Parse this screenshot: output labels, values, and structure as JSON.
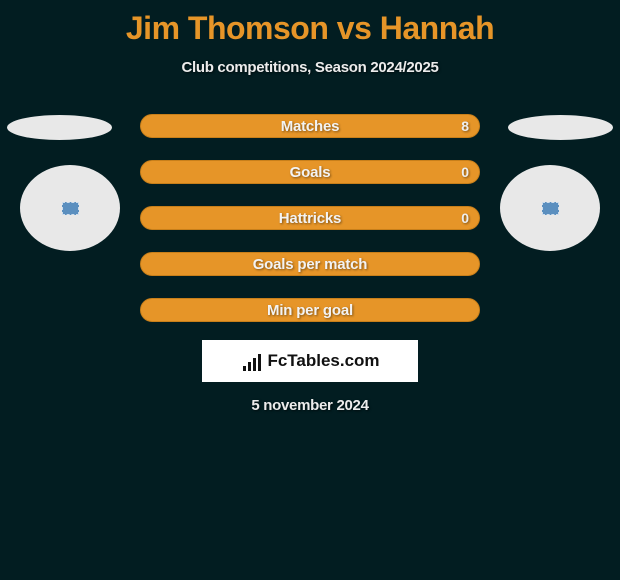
{
  "title": "Jim Thomson vs Hannah",
  "subtitle": "Club competitions, Season 2024/2025",
  "colors": {
    "background": "#021d21",
    "accent": "#e69528",
    "accent_border": "#c87f1a",
    "text_light": "#ececec",
    "white": "#ffffff",
    "badge": "#5b8fbf"
  },
  "rows": [
    {
      "label": "Matches",
      "value": "8"
    },
    {
      "label": "Goals",
      "value": "0"
    },
    {
      "label": "Hattricks",
      "value": "0"
    },
    {
      "label": "Goals per match",
      "value": ""
    },
    {
      "label": "Min per goal",
      "value": ""
    }
  ],
  "logo_text": "FcTables.com",
  "date": "5 november 2024"
}
